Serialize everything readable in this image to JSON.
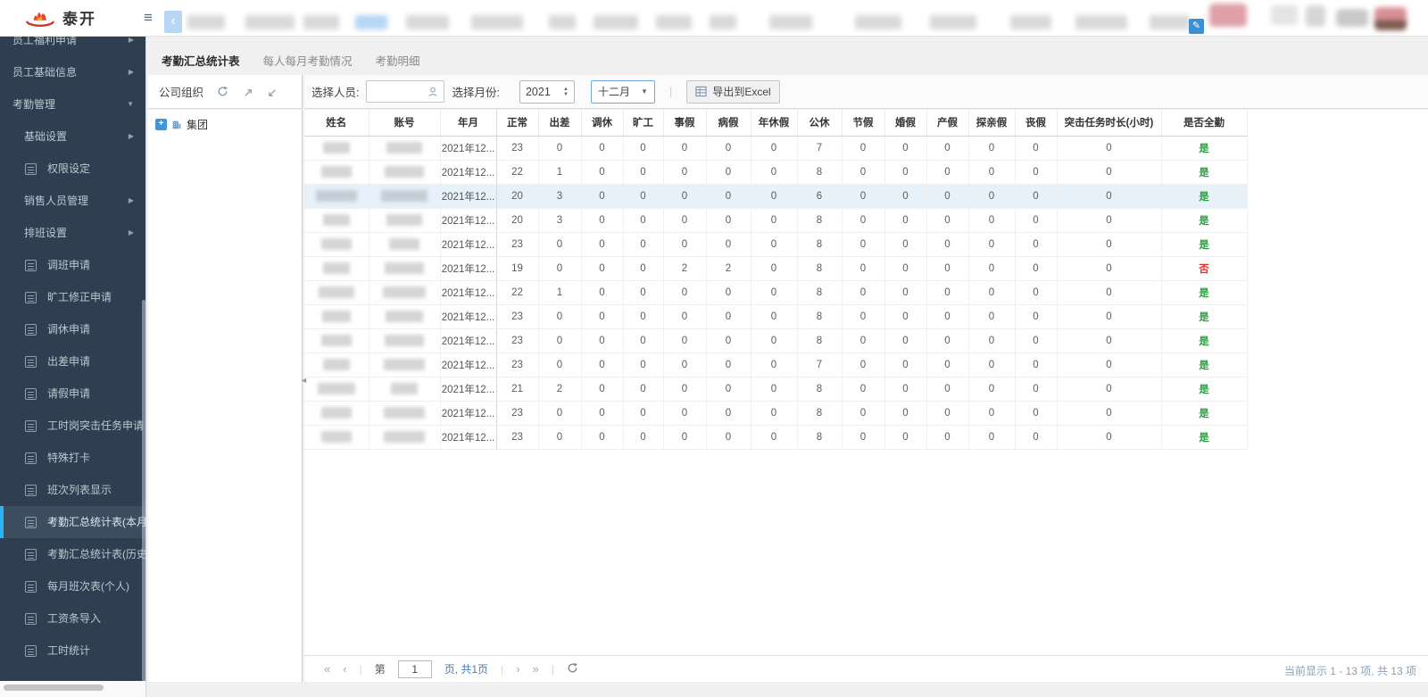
{
  "topbar": {
    "logo_text": "泰开",
    "hamburger_icon": "≡",
    "back_icon": "‹",
    "edit_icon": "✎"
  },
  "sidebar": {
    "items": [
      {
        "label": "员工福利申请",
        "type": "group",
        "arrow": "right"
      },
      {
        "label": "员工基础信息",
        "type": "group",
        "arrow": "right"
      },
      {
        "label": "考勤管理",
        "type": "group",
        "arrow": "down",
        "expanded": true
      },
      {
        "label": "基础设置",
        "type": "subgroup",
        "arrow": "right"
      },
      {
        "label": "权限设定",
        "type": "leaf"
      },
      {
        "label": "销售人员管理",
        "type": "subgroup",
        "arrow": "right"
      },
      {
        "label": "排班设置",
        "type": "subgroup",
        "arrow": "right"
      },
      {
        "label": "调班申请",
        "type": "leaf"
      },
      {
        "label": "旷工修正申请",
        "type": "leaf"
      },
      {
        "label": "调休申请",
        "type": "leaf"
      },
      {
        "label": "出差申请",
        "type": "leaf"
      },
      {
        "label": "请假申请",
        "type": "leaf"
      },
      {
        "label": "工时岗突击任务申请",
        "type": "leaf"
      },
      {
        "label": "特殊打卡",
        "type": "leaf"
      },
      {
        "label": "班次列表显示",
        "type": "leaf"
      },
      {
        "label": "考勤汇总统计表(本月)",
        "type": "leaf",
        "active": true
      },
      {
        "label": "考勤汇总统计表(历史)",
        "type": "leaf"
      },
      {
        "label": "每月班次表(个人)",
        "type": "leaf"
      },
      {
        "label": "工资条导入",
        "type": "leaf"
      },
      {
        "label": "工时统计",
        "type": "leaf"
      }
    ]
  },
  "tabs": [
    {
      "label": "考勤汇总统计表",
      "active": true
    },
    {
      "label": "每人每月考勤情况",
      "active": false
    },
    {
      "label": "考勤明细",
      "active": false
    }
  ],
  "org_panel": {
    "title": "公司组织",
    "tree_root": "集团",
    "tree_expand_glyph": "+"
  },
  "filters": {
    "person_label": "选择人员:",
    "month_label": "选择月份:",
    "year": "2021",
    "month": "十二月",
    "separator": "|",
    "export_label": "导出到Excel",
    "spinner_up": "▲",
    "spinner_down": "▼",
    "dropdown_caret": "▼"
  },
  "splitter_arrow": "◄",
  "table": {
    "columns": [
      "姓名",
      "账号",
      "年月",
      "正常",
      "出差",
      "调休",
      "旷工",
      "事假",
      "病假",
      "年休假",
      "公休",
      "节假",
      "婚假",
      "产假",
      "探亲假",
      "丧假",
      "突击任务时长(小时)",
      "是否全勤"
    ],
    "year_month": "2021年12...",
    "selected_row": 3,
    "full_yes_label": "是",
    "full_no_label": "否",
    "rows": [
      {
        "values": [
          23,
          0,
          0,
          0,
          0,
          0,
          0,
          7,
          0,
          0,
          0,
          0,
          0,
          0
        ],
        "full": "是"
      },
      {
        "values": [
          22,
          1,
          0,
          0,
          0,
          0,
          0,
          8,
          0,
          0,
          0,
          0,
          0,
          0
        ],
        "full": "是"
      },
      {
        "values": [
          20,
          3,
          0,
          0,
          0,
          0,
          0,
          6,
          0,
          0,
          0,
          0,
          0,
          0
        ],
        "full": "是"
      },
      {
        "values": [
          20,
          3,
          0,
          0,
          0,
          0,
          0,
          8,
          0,
          0,
          0,
          0,
          0,
          0
        ],
        "full": "是"
      },
      {
        "values": [
          23,
          0,
          0,
          0,
          0,
          0,
          0,
          8,
          0,
          0,
          0,
          0,
          0,
          0
        ],
        "full": "是"
      },
      {
        "values": [
          19,
          0,
          0,
          0,
          2,
          2,
          0,
          8,
          0,
          0,
          0,
          0,
          0,
          0
        ],
        "full": "否"
      },
      {
        "values": [
          22,
          1,
          0,
          0,
          0,
          0,
          0,
          8,
          0,
          0,
          0,
          0,
          0,
          0
        ],
        "full": "是"
      },
      {
        "values": [
          23,
          0,
          0,
          0,
          0,
          0,
          0,
          8,
          0,
          0,
          0,
          0,
          0,
          0
        ],
        "full": "是"
      },
      {
        "values": [
          23,
          0,
          0,
          0,
          0,
          0,
          0,
          8,
          0,
          0,
          0,
          0,
          0,
          0
        ],
        "full": "是"
      },
      {
        "values": [
          23,
          0,
          0,
          0,
          0,
          0,
          0,
          7,
          0,
          0,
          0,
          0,
          0,
          0
        ],
        "full": "是"
      },
      {
        "values": [
          21,
          2,
          0,
          0,
          0,
          0,
          0,
          8,
          0,
          0,
          0,
          0,
          0,
          0
        ],
        "full": "是"
      },
      {
        "values": [
          23,
          0,
          0,
          0,
          0,
          0,
          0,
          8,
          0,
          0,
          0,
          0,
          0,
          0
        ],
        "full": "是"
      },
      {
        "values": [
          23,
          0,
          0,
          0,
          0,
          0,
          0,
          8,
          0,
          0,
          0,
          0,
          0,
          0
        ],
        "full": "是"
      }
    ]
  },
  "pagination": {
    "first": "«",
    "prev": "‹",
    "page_label_before": "第",
    "page_value": "1",
    "page_label_after": "页, 共1页",
    "next": "›",
    "last": "»"
  },
  "status_text": "当前显示 1 - 13 项, 共 13 项",
  "colors": {
    "sidebar_bg": "#2f3e50",
    "active_accent": "#2db3f4",
    "full_yes": "#2f9e44",
    "full_no": "#e03131",
    "selected_row_bg": "#e7f1fa"
  }
}
